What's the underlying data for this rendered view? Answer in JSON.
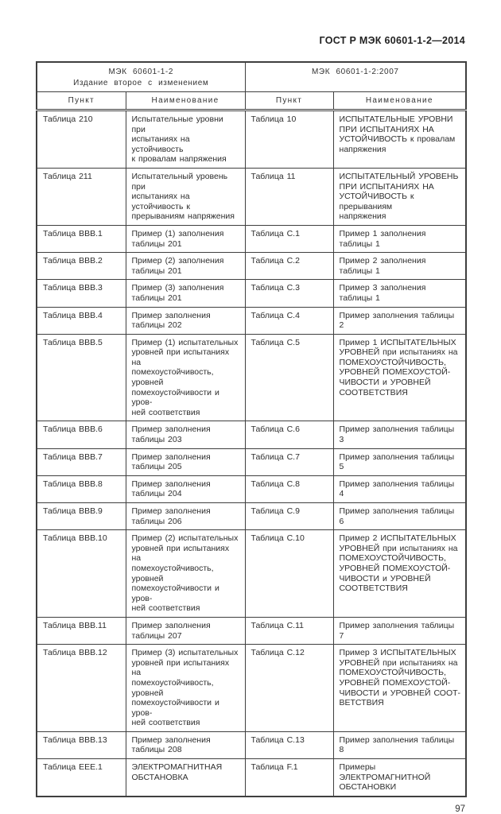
{
  "page": {
    "header": "ГОСТ Р МЭК 60601-1-2—2014",
    "page_number": "97"
  },
  "table": {
    "group_headers": [
      "МЭК 60601-1-2\nИздание второе с изменением",
      "МЭК 60601-1-2:2007"
    ],
    "column_headers": [
      "Пункт",
      "Наименование",
      "Пункт",
      "Наименование"
    ],
    "rows": [
      [
        "Таблица 210",
        "Испытательные уровни при\nиспытаниях на устойчивость\nк провалам напряжения",
        "Таблица 10",
        "ИСПЫТАТЕЛЬНЫЕ УРОВНИ\nПРИ ИСПЫТАНИЯХ НА\nУСТОЙЧИВОСТЬ к провалам\nнапряжения"
      ],
      [
        "Таблица 211",
        "Испытательный уровень при\nиспытаниях на устойчивость к\nпрерываниям напряжения",
        "Таблица 11",
        "ИСПЫТАТЕЛЬНЫЙ УРОВЕНЬ\nПРИ ИСПЫТАНИЯХ НА\nУСТОЙЧИВОСТЬ к прерываниям\nнапряжения"
      ],
      [
        "Таблица ВВВ.1",
        "Пример (1) заполнения\nтаблицы 201",
        "Таблица С.1",
        "Пример 1 заполнения таблицы 1"
      ],
      [
        "Таблица ВВВ.2",
        "Пример (2) заполнения\nтаблицы 201",
        "Таблица С.2",
        "Пример 2 заполнения таблицы 1"
      ],
      [
        "Таблица ВВВ.3",
        "Пример (3) заполнения\nтаблицы 201",
        "Таблица С.3",
        "Пример 3 заполнения таблицы 1"
      ],
      [
        "Таблица ВВВ.4",
        "Пример заполнения\nтаблицы 202",
        "Таблица С.4",
        "Пример заполнения таблицы 2"
      ],
      [
        "Таблица ВВВ.5",
        "Пример (1) испытательных\nуровней при испытаниях на\nпомехоустойчивость, уровней\nпомехоустойчивости и уров-\nней соответствия",
        "Таблица С.5",
        "Пример 1 ИСПЫТАТЕЛЬНЫХ\nУРОВНЕЙ при испытаниях на\nПОМЕХОУСТОЙЧИВОСТЬ,\nУРОВНЕЙ ПОМЕХОУСТОЙ-\nЧИВОСТИ и УРОВНЕЙ\nСООТВЕТСТВИЯ"
      ],
      [
        "Таблица ВВВ.6",
        "Пример заполнения\nтаблицы 203",
        "Таблица С.6",
        "Пример заполнения таблицы 3"
      ],
      [
        "Таблица ВВВ.7",
        "Пример заполнения\nтаблицы 205",
        "Таблица С.7",
        "Пример заполнения таблицы 5"
      ],
      [
        "Таблица ВВВ.8",
        "Пример заполнения\nтаблицы 204",
        "Таблица С.8",
        "Пример заполнения таблицы 4"
      ],
      [
        "Таблица ВВВ.9",
        "Пример заполнения\nтаблицы 206",
        "Таблица С.9",
        "Пример заполнения таблицы 6"
      ],
      [
        "Таблица ВВВ.10",
        "Пример (2) испытательных\nуровней при испытаниях на\nпомехоустойчивость, уровней\nпомехоустойчивости и уров-\nней соответствия",
        "Таблица С.10",
        "Пример 2 ИСПЫТАТЕЛЬНЫХ\nУРОВНЕЙ при испытаниях на\nПОМЕХОУСТОЙЧИВОСТЬ,\nУРОВНЕЙ ПОМЕХОУСТОЙ-\nЧИВОСТИ и УРОВНЕЙ\nСООТВЕТСТВИЯ"
      ],
      [
        "Таблица ВВВ.11",
        "Пример заполнения\nтаблицы 207",
        "Таблица С.11",
        "Пример заполнения таблицы 7"
      ],
      [
        "Таблица ВВВ.12",
        "Пример (3) испытательных\nуровней при испытаниях на\nпомехоустойчивость, уровней\nпомехоустойчивости и уров-\nней соответствия",
        "Таблица С.12",
        "Пример 3 ИСПЫТАТЕЛЬНЫХ\nУРОВНЕЙ при испытаниях на\nПОМЕХОУСТОЙЧИВОСТЬ,\nУРОВНЕЙ ПОМЕХОУСТОЙ-\nЧИВОСТИ и УРОВНЕЙ СООТ-\nВЕТСТВИЯ"
      ],
      [
        "Таблица ВВВ.13",
        "Пример заполнения\nтаблицы 208",
        "Таблица С.13",
        "Пример заполнения таблицы 8"
      ],
      [
        "Таблица ЕЕЕ.1",
        "ЭЛЕКТРОМАГНИТНАЯ\nОБСТАНОВКА",
        "Таблица F.1",
        "Примеры ЭЛЕКТРОМАГНИТНОЙ\nОБСТАНОВКИ"
      ]
    ]
  }
}
